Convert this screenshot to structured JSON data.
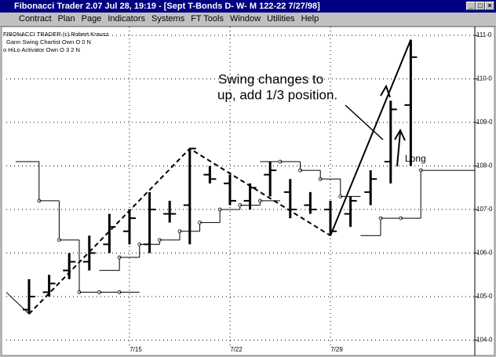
{
  "window": {
    "title": "Fibonacci Trader 2.07 Jul 28,  19:19 - [Sept T-Bonds D- W- M  122-22 7/27/98]",
    "menu": [
      "Contract",
      "Plan",
      "Page",
      "Indicators",
      "Systems",
      "FT Tools",
      "Window",
      "Utilities",
      "Help"
    ]
  },
  "chart_data": {
    "type": "ohlc",
    "header": [
      "FIBONACCI TRADER (c) Robert Krausz",
      "Gann Swing Chartist Own O 0 N",
      "o HiLo Activator Own O 3 2 N"
    ],
    "categories": [
      null,
      null,
      null,
      null,
      null,
      "7/15",
      null,
      null,
      null,
      null,
      "7/22",
      null,
      null,
      null,
      null,
      "7/29",
      null,
      null,
      null,
      null,
      null
    ],
    "bars": [
      {
        "o": 104.7,
        "h": 105.4,
        "l": 104.6,
        "c": 105.0
      },
      {
        "o": 105.1,
        "h": 105.5,
        "l": 105.0,
        "c": 105.3
      },
      {
        "o": 105.6,
        "h": 106.0,
        "l": 105.4,
        "c": 105.8
      },
      {
        "o": 105.8,
        "h": 106.4,
        "l": 105.6,
        "c": 106.0
      },
      {
        "o": 106.2,
        "h": 106.9,
        "l": 106.0,
        "c": 106.6
      },
      {
        "o": 106.5,
        "h": 107.0,
        "l": 106.2,
        "c": 106.8
      },
      {
        "o": 106.2,
        "h": 107.4,
        "l": 106.0,
        "c": 107.0
      },
      {
        "o": 106.9,
        "h": 107.2,
        "l": 106.7,
        "c": 106.9
      },
      {
        "o": 107.1,
        "h": 108.4,
        "l": 106.2,
        "c": 108.4
      },
      {
        "o": 107.8,
        "h": 108.0,
        "l": 107.6,
        "c": 107.7
      },
      {
        "o": 107.6,
        "h": 107.8,
        "l": 107.1,
        "c": 107.2
      },
      {
        "o": 107.2,
        "h": 107.6,
        "l": 107.0,
        "c": 107.5
      },
      {
        "o": 107.8,
        "h": 108.1,
        "l": 107.3,
        "c": 107.9
      },
      {
        "o": 107.4,
        "h": 107.7,
        "l": 106.8,
        "c": 107.0
      },
      {
        "o": 107.1,
        "h": 107.4,
        "l": 106.9,
        "c": 107.0
      },
      {
        "o": 107.0,
        "h": 107.2,
        "l": 106.4,
        "c": 106.5
      },
      {
        "o": 106.9,
        "h": 107.3,
        "l": 106.6,
        "c": 107.2
      },
      {
        "o": 107.4,
        "h": 107.9,
        "l": 107.1,
        "c": 107.7
      },
      {
        "o": 108.1,
        "h": 109.5,
        "l": 107.6,
        "c": 109.3
      },
      {
        "o": 109.4,
        "h": 110.9,
        "l": 108.0,
        "c": 110.5
      }
    ],
    "hilo": [
      [
        108.1,
        107.2,
        106.3,
        105.1,
        105.1,
        105.1,
        null,
        null,
        null,
        null,
        null,
        null,
        null,
        null,
        null,
        null,
        null,
        null,
        null,
        null,
        null
      ],
      [
        null,
        null,
        null,
        null,
        105.6,
        105.9,
        106.2,
        106.3,
        106.5,
        106.7,
        107.0,
        107.1,
        107.2,
        null,
        null,
        null,
        null,
        null,
        null,
        null,
        null
      ],
      [
        null,
        null,
        null,
        null,
        null,
        null,
        null,
        null,
        null,
        null,
        null,
        null,
        108.1,
        108.1,
        107.9,
        107.7,
        107.3,
        null,
        null,
        null,
        null
      ],
      [
        null,
        null,
        null,
        null,
        null,
        null,
        null,
        null,
        null,
        null,
        null,
        null,
        null,
        null,
        null,
        null,
        null,
        106.4,
        106.8,
        106.8,
        107.9
      ]
    ],
    "swing_down": [
      [
        0,
        104.6
      ],
      [
        8,
        108.4
      ],
      [
        15,
        106.4
      ]
    ],
    "swing_up": [
      [
        15,
        106.4
      ],
      [
        19,
        110.9
      ]
    ],
    "ylim": [
      103.9,
      111.2
    ],
    "yticks": [
      {
        "value": 111,
        "label": "111-0"
      },
      {
        "value": 110,
        "label": "110-0"
      },
      {
        "value": 109,
        "label": "109-0"
      },
      {
        "value": 108,
        "label": "108-0"
      },
      {
        "value": 107,
        "label": "107-0"
      },
      {
        "value": 106,
        "label": "106-0"
      },
      {
        "value": 105,
        "label": "105-0"
      },
      {
        "value": 104,
        "label": "104-0"
      }
    ],
    "annotations": [
      "Swing changes to",
      "up, add 1/3 position.",
      "Long"
    ],
    "grid": true
  }
}
